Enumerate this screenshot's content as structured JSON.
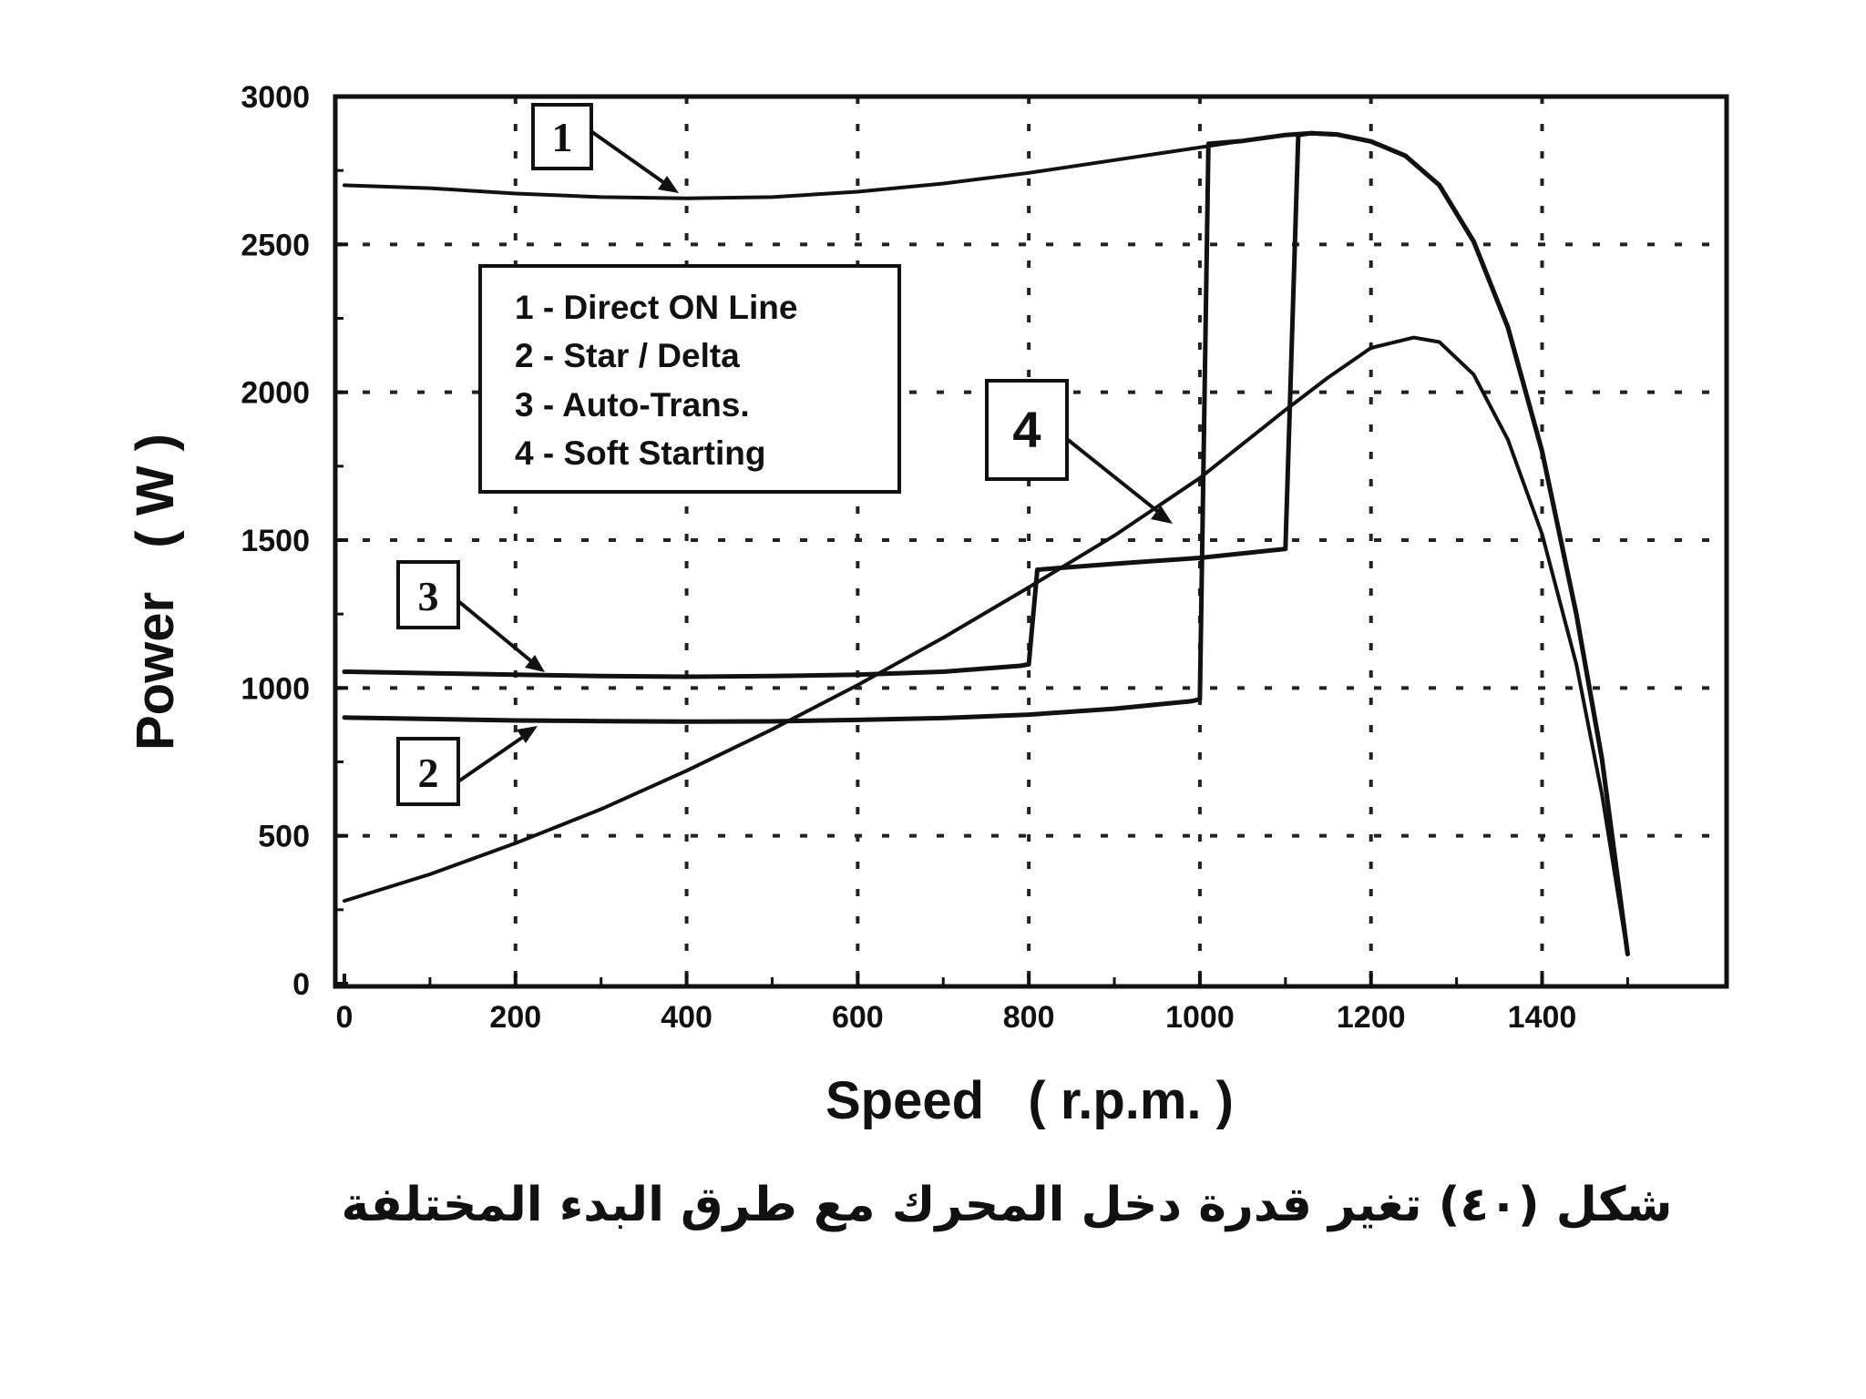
{
  "chart_data": {
    "type": "line",
    "xlabel": "Speed   ( r.p.m. )",
    "ylabel": "Power   ( W )",
    "xlim": [
      0,
      1550
    ],
    "ylim": [
      0,
      3000
    ],
    "x_ticks": [
      0,
      200,
      400,
      600,
      800,
      1000,
      1200,
      1400
    ],
    "x_tick_labels": [
      "0",
      "200",
      "400",
      "600",
      "800",
      "1000",
      "1200",
      "1400"
    ],
    "y_ticks": [
      0,
      500,
      1000,
      1500,
      2000,
      2500,
      3000
    ],
    "y_tick_labels": [
      "0",
      "500",
      "1000",
      "1500",
      "2000",
      "2500",
      "3000"
    ],
    "grid": true,
    "legend_placement": "upper-left",
    "legend": [
      "1 - Direct  ON  Line",
      "2 - Star / Delta",
      "3 - Auto-Trans.",
      "4 - Soft  Starting"
    ],
    "series": [
      {
        "tag": "1",
        "points": [
          [
            0,
            2700
          ],
          [
            100,
            2690
          ],
          [
            200,
            2672
          ],
          [
            300,
            2660
          ],
          [
            400,
            2656
          ],
          [
            500,
            2660
          ],
          [
            600,
            2678
          ],
          [
            700,
            2706
          ],
          [
            800,
            2742
          ],
          [
            900,
            2785
          ],
          [
            1000,
            2828
          ],
          [
            1050,
            2850
          ],
          [
            1100,
            2870
          ],
          [
            1130,
            2876
          ],
          [
            1160,
            2872
          ],
          [
            1200,
            2848
          ],
          [
            1240,
            2800
          ],
          [
            1280,
            2700
          ],
          [
            1320,
            2510
          ],
          [
            1360,
            2220
          ],
          [
            1400,
            1800
          ],
          [
            1440,
            1250
          ],
          [
            1470,
            760
          ],
          [
            1500,
            100
          ]
        ]
      },
      {
        "tag": "2",
        "points": [
          [
            0,
            900
          ],
          [
            100,
            895
          ],
          [
            200,
            890
          ],
          [
            300,
            888
          ],
          [
            400,
            886
          ],
          [
            500,
            887
          ],
          [
            600,
            892
          ],
          [
            700,
            898
          ],
          [
            800,
            910
          ],
          [
            900,
            930
          ],
          [
            990,
            955
          ],
          [
            1000,
            962
          ],
          [
            1010,
            2840
          ],
          [
            1050,
            2850
          ],
          [
            1100,
            2870
          ],
          [
            1130,
            2876
          ],
          [
            1160,
            2872
          ],
          [
            1200,
            2848
          ],
          [
            1240,
            2800
          ],
          [
            1280,
            2700
          ],
          [
            1320,
            2510
          ],
          [
            1360,
            2220
          ],
          [
            1400,
            1800
          ],
          [
            1440,
            1250
          ],
          [
            1470,
            760
          ],
          [
            1500,
            100
          ]
        ]
      },
      {
        "tag": "3",
        "points": [
          [
            0,
            1055
          ],
          [
            100,
            1050
          ],
          [
            200,
            1045
          ],
          [
            300,
            1040
          ],
          [
            400,
            1038
          ],
          [
            500,
            1040
          ],
          [
            600,
            1045
          ],
          [
            700,
            1055
          ],
          [
            790,
            1075
          ],
          [
            800,
            1080
          ],
          [
            810,
            1400
          ],
          [
            900,
            1420
          ],
          [
            1000,
            1440
          ],
          [
            1100,
            1470
          ],
          [
            1115,
            2870
          ],
          [
            1130,
            2876
          ],
          [
            1160,
            2872
          ],
          [
            1200,
            2848
          ],
          [
            1240,
            2800
          ],
          [
            1280,
            2700
          ],
          [
            1320,
            2510
          ],
          [
            1360,
            2220
          ],
          [
            1400,
            1800
          ],
          [
            1440,
            1250
          ],
          [
            1470,
            760
          ],
          [
            1500,
            100
          ]
        ]
      },
      {
        "tag": "4",
        "points": [
          [
            0,
            280
          ],
          [
            100,
            370
          ],
          [
            200,
            475
          ],
          [
            300,
            590
          ],
          [
            400,
            720
          ],
          [
            500,
            860
          ],
          [
            600,
            1010
          ],
          [
            700,
            1170
          ],
          [
            800,
            1340
          ],
          [
            900,
            1515
          ],
          [
            1000,
            1710
          ],
          [
            1100,
            1940
          ],
          [
            1150,
            2050
          ],
          [
            1200,
            2150
          ],
          [
            1250,
            2185
          ],
          [
            1280,
            2170
          ],
          [
            1320,
            2060
          ],
          [
            1360,
            1840
          ],
          [
            1400,
            1520
          ],
          [
            1440,
            1080
          ],
          [
            1470,
            640
          ],
          [
            1500,
            100
          ]
        ]
      }
    ]
  },
  "tags": {
    "t1": "1",
    "t2": "2",
    "t3": "3",
    "t4": "4"
  },
  "caption": "شكل (٤٠) تغير قدرة دخل المحرك مع طرق البدء المختلفة"
}
